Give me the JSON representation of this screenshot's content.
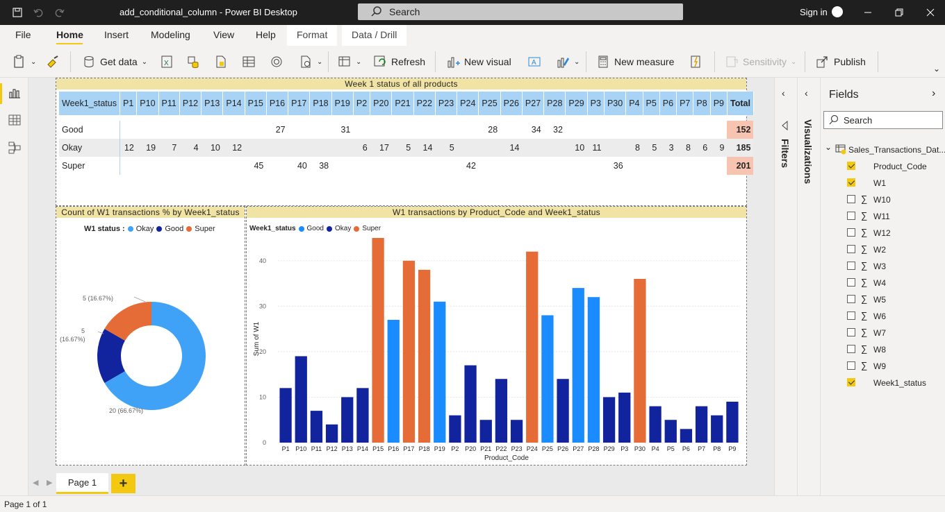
{
  "titlebar": {
    "title": "add_conditional_column - Power BI Desktop",
    "search_placeholder": "Search",
    "sign_in": "Sign in"
  },
  "ribbon_tabs": {
    "file": "File",
    "home": "Home",
    "insert": "Insert",
    "modeling": "Modeling",
    "view": "View",
    "help": "Help",
    "format": "Format",
    "data_drill": "Data / Drill"
  },
  "ribbon": {
    "get_data": "Get data",
    "refresh": "Refresh",
    "new_visual": "New visual",
    "new_measure": "New measure",
    "sensitivity": "Sensitivity",
    "publish": "Publish"
  },
  "matrix": {
    "title": "Week 1 status of all products",
    "row_header": "Week1_status",
    "columns": [
      "P1",
      "P10",
      "P11",
      "P12",
      "P13",
      "P14",
      "P15",
      "P16",
      "P17",
      "P18",
      "P19",
      "P2",
      "P20",
      "P21",
      "P22",
      "P23",
      "P24",
      "P25",
      "P26",
      "P27",
      "P28",
      "P29",
      "P3",
      "P30",
      "P4",
      "P5",
      "P6",
      "P7",
      "P8",
      "P9"
    ],
    "total_label": "Total",
    "rows": [
      {
        "label": "Good",
        "cells": [
          "",
          "",
          "",
          "",
          "",
          "",
          "",
          "27",
          "",
          "",
          "31",
          "",
          "",
          "",
          "",
          "",
          "",
          "28",
          "",
          "34",
          "32",
          "",
          "",
          "",
          "",
          "",
          "",
          "",
          "",
          ""
        ],
        "total": "152"
      },
      {
        "label": "Okay",
        "cells": [
          "12",
          "19",
          "7",
          "4",
          "10",
          "12",
          "",
          "",
          "",
          "",
          "",
          "6",
          "17",
          "5",
          "14",
          "5",
          "",
          "",
          "14",
          "",
          "",
          "10",
          "11",
          "",
          "8",
          "5",
          "3",
          "8",
          "6",
          "9"
        ],
        "total": "185"
      },
      {
        "label": "Super",
        "cells": [
          "",
          "",
          "",
          "",
          "",
          "",
          "45",
          "",
          "40",
          "38",
          "",
          "",
          "",
          "",
          "",
          "",
          "42",
          "",
          "",
          "",
          "",
          "",
          "",
          "36",
          "",
          "",
          "",
          "",
          "",
          ""
        ],
        "total": "201"
      }
    ]
  },
  "donut": {
    "title": "Count of W1 transactions % by Week1_status",
    "legend_title": "W1 status :",
    "labels": {
      "top": "5 (16.67%)",
      "left_line1": "5",
      "left_line2": "(16.67%)",
      "bottom": "20 (66.67%)"
    }
  },
  "bar": {
    "title": "W1 transactions by Product_Code and Week1_status",
    "legend_title": "Week1_status",
    "xlabel": "Product_Code",
    "ylabel": "Sum of W1"
  },
  "chart_data": [
    {
      "type": "pie",
      "title": "Count of W1 transactions % by Week1_status",
      "categories": [
        "Okay",
        "Good",
        "Super"
      ],
      "values": [
        20,
        5,
        5
      ],
      "colors": [
        "#3fa2f7",
        "#12239e",
        "#e66c37"
      ]
    },
    {
      "type": "bar",
      "title": "W1 transactions by Product_Code and Week1_status",
      "xlabel": "Product_Code",
      "ylabel": "Sum of W1",
      "ylim": [
        0,
        45
      ],
      "yticks": [
        0,
        10,
        20,
        30,
        40
      ],
      "categories": [
        "P1",
        "P10",
        "P11",
        "P12",
        "P13",
        "P14",
        "P15",
        "P16",
        "P17",
        "P18",
        "P19",
        "P2",
        "P20",
        "P21",
        "P22",
        "P23",
        "P24",
        "P25",
        "P26",
        "P27",
        "P28",
        "P29",
        "P3",
        "P30",
        "P4",
        "P5",
        "P6",
        "P7",
        "P8",
        "P9"
      ],
      "values": [
        12,
        19,
        7,
        4,
        10,
        12,
        45,
        27,
        40,
        38,
        31,
        6,
        17,
        5,
        14,
        5,
        42,
        28,
        14,
        34,
        32,
        10,
        11,
        36,
        8,
        5,
        3,
        8,
        6,
        9
      ],
      "status": [
        "Okay",
        "Okay",
        "Okay",
        "Okay",
        "Okay",
        "Okay",
        "Super",
        "Good",
        "Super",
        "Super",
        "Good",
        "Okay",
        "Okay",
        "Okay",
        "Okay",
        "Okay",
        "Super",
        "Good",
        "Okay",
        "Good",
        "Good",
        "Okay",
        "Okay",
        "Super",
        "Okay",
        "Okay",
        "Okay",
        "Okay",
        "Okay",
        "Okay"
      ],
      "series": [
        {
          "name": "Good",
          "color": "#1a8cff"
        },
        {
          "name": "Okay",
          "color": "#12239e"
        },
        {
          "name": "Super",
          "color": "#e66c37"
        }
      ]
    }
  ],
  "panes": {
    "filters": "Filters",
    "visualizations": "Visualizations",
    "fields_title": "Fields",
    "fields_search": "Search"
  },
  "fields": {
    "table_name": "Sales_Transactions_Dat...",
    "items": [
      {
        "name": "Product_Code",
        "checked": true,
        "sigma": false
      },
      {
        "name": "W1",
        "checked": true,
        "sigma": false
      },
      {
        "name": "W10",
        "checked": false,
        "sigma": true
      },
      {
        "name": "W11",
        "checked": false,
        "sigma": true
      },
      {
        "name": "W12",
        "checked": false,
        "sigma": true
      },
      {
        "name": "W2",
        "checked": false,
        "sigma": true
      },
      {
        "name": "W3",
        "checked": false,
        "sigma": true
      },
      {
        "name": "W4",
        "checked": false,
        "sigma": true
      },
      {
        "name": "W5",
        "checked": false,
        "sigma": true
      },
      {
        "name": "W6",
        "checked": false,
        "sigma": true
      },
      {
        "name": "W7",
        "checked": false,
        "sigma": true
      },
      {
        "name": "W8",
        "checked": false,
        "sigma": true
      },
      {
        "name": "W9",
        "checked": false,
        "sigma": true
      },
      {
        "name": "Week1_status",
        "checked": true,
        "sigma": false
      }
    ]
  },
  "pages": {
    "tab": "Page 1",
    "status": "Page 1 of 1"
  }
}
